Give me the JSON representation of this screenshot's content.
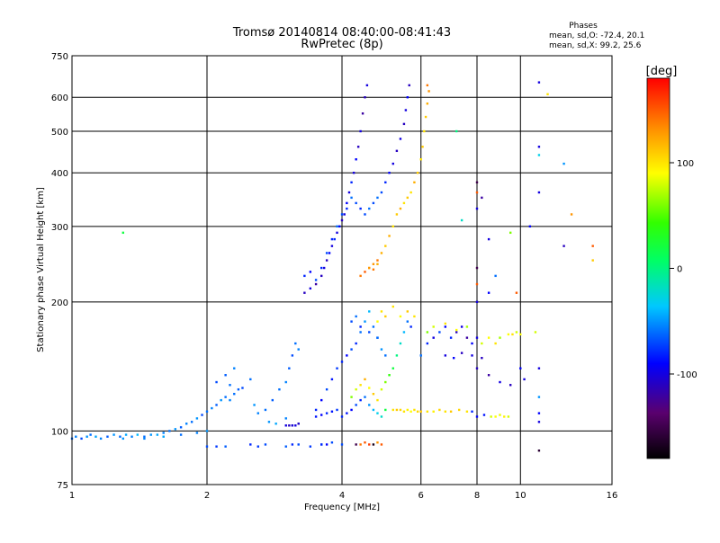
{
  "header": {
    "title_line1": "Tromsø 20140814 08:40:00-08:41:43",
    "title_line2": "RwPretec (8p)"
  },
  "stats": {
    "heading": "Phases",
    "line1": "mean, sd,O: -72.4, 20.1",
    "line2": "mean, sd,X:  99.2, 25.6"
  },
  "chart_data": {
    "type": "scatter",
    "xlabel": "Frequency [MHz]",
    "ylabel": "Stationary phase Virtual Height [km]",
    "x_scale": "log",
    "y_scale": "log",
    "xlim": [
      1,
      16
    ],
    "ylim": [
      75,
      750
    ],
    "x_ticks": [
      1,
      2,
      4,
      6,
      8,
      10,
      16
    ],
    "x_tick_labels": [
      "1",
      "2",
      "4",
      "6",
      "8",
      "10",
      "16"
    ],
    "y_ticks": [
      75,
      100,
      200,
      300,
      400,
      500,
      600,
      750
    ],
    "y_tick_labels": [
      "75",
      "100",
      "200",
      "300",
      "400",
      "500",
      "600",
      "750"
    ],
    "grid_x": [
      2,
      4,
      6,
      8,
      10
    ],
    "grid_y": [
      100,
      200,
      300,
      400,
      500,
      600
    ],
    "colorbar": {
      "label": "[deg]",
      "range": [
        -180,
        180
      ],
      "ticks": [
        100,
        0,
        -100
      ],
      "tick_labels": [
        "100",
        "0",
        "-100"
      ]
    },
    "points": [
      [
        1.0,
        96,
        -60
      ],
      [
        1.02,
        97,
        -55
      ],
      [
        1.05,
        96,
        -70
      ],
      [
        1.08,
        97,
        -50
      ],
      [
        1.1,
        98,
        -60
      ],
      [
        1.13,
        97,
        -45
      ],
      [
        1.16,
        96,
        -55
      ],
      [
        1.2,
        97,
        -65
      ],
      [
        1.24,
        98,
        -50
      ],
      [
        1.28,
        97,
        -60
      ],
      [
        1.32,
        98,
        -45
      ],
      [
        1.36,
        97,
        -55
      ],
      [
        1.4,
        98,
        -40
      ],
      [
        1.45,
        97,
        -60
      ],
      [
        1.5,
        98,
        -50
      ],
      [
        1.55,
        98,
        -45
      ],
      [
        1.6,
        99,
        -55
      ],
      [
        1.65,
        100,
        -60
      ],
      [
        1.7,
        101,
        -50
      ],
      [
        1.75,
        102,
        -65
      ],
      [
        1.8,
        104,
        -55
      ],
      [
        1.85,
        105,
        -60
      ],
      [
        1.9,
        107,
        -50
      ],
      [
        1.95,
        109,
        -70
      ],
      [
        2.0,
        111,
        -60
      ],
      [
        2.05,
        113,
        -55
      ],
      [
        2.1,
        115,
        -65
      ],
      [
        2.15,
        118,
        -50
      ],
      [
        2.2,
        120,
        -60
      ],
      [
        2.25,
        118,
        -55
      ],
      [
        2.3,
        122,
        -60
      ],
      [
        2.35,
        125,
        -65
      ],
      [
        1.3,
        96,
        -50
      ],
      [
        1.45,
        96,
        -55
      ],
      [
        1.6,
        97,
        -45
      ],
      [
        1.75,
        98,
        -60
      ],
      [
        1.9,
        99,
        -55
      ],
      [
        2.0,
        100,
        -50
      ],
      [
        2.1,
        130,
        -70
      ],
      [
        2.2,
        135,
        -65
      ],
      [
        2.25,
        128,
        -60
      ],
      [
        2.3,
        140,
        -55
      ],
      [
        2.4,
        126,
        -70
      ],
      [
        2.5,
        132,
        -60
      ],
      [
        2.55,
        115,
        -50
      ],
      [
        2.6,
        110,
        -55
      ],
      [
        2.7,
        112,
        -60
      ],
      [
        2.8,
        118,
        -65
      ],
      [
        2.9,
        125,
        -60
      ],
      [
        3.0,
        130,
        -55
      ],
      [
        3.05,
        140,
        -65
      ],
      [
        3.1,
        150,
        -70
      ],
      [
        3.15,
        160,
        -60
      ],
      [
        3.2,
        155,
        -55
      ],
      [
        2.75,
        105,
        -50
      ],
      [
        2.85,
        104,
        -45
      ],
      [
        3.0,
        107,
        -55
      ],
      [
        3.1,
        103,
        -60
      ],
      [
        3.2,
        104,
        -50
      ],
      [
        2.0,
        92,
        -70
      ],
      [
        2.1,
        92,
        -75
      ],
      [
        2.2,
        92,
        -65
      ],
      [
        2.5,
        93,
        -80
      ],
      [
        2.6,
        92,
        -75
      ],
      [
        2.7,
        93,
        -70
      ],
      [
        3.0,
        92,
        -65
      ],
      [
        3.1,
        93,
        -80
      ],
      [
        3.2,
        93,
        -70
      ],
      [
        3.4,
        92,
        -75
      ],
      [
        3.6,
        93,
        -60
      ],
      [
        4.0,
        93,
        -70
      ],
      [
        3.0,
        103,
        -100
      ],
      [
        3.05,
        103,
        -110
      ],
      [
        3.1,
        103,
        -105
      ],
      [
        3.15,
        103,
        -100
      ],
      [
        3.2,
        104,
        -110
      ],
      [
        3.5,
        112,
        -80
      ],
      [
        3.6,
        118,
        -90
      ],
      [
        3.7,
        125,
        -70
      ],
      [
        3.8,
        132,
        -85
      ],
      [
        3.9,
        140,
        -75
      ],
      [
        4.0,
        145,
        -80
      ],
      [
        4.1,
        150,
        -90
      ],
      [
        4.2,
        155,
        -70
      ],
      [
        4.3,
        160,
        -80
      ],
      [
        4.4,
        170,
        -60
      ],
      [
        4.5,
        180,
        -50
      ],
      [
        4.6,
        190,
        -40
      ],
      [
        4.7,
        175,
        -60
      ],
      [
        4.8,
        165,
        -70
      ],
      [
        4.9,
        155,
        -50
      ],
      [
        5.0,
        150,
        -60
      ],
      [
        3.5,
        108,
        -85
      ],
      [
        3.6,
        109,
        -90
      ],
      [
        3.7,
        110,
        -80
      ],
      [
        3.8,
        111,
        -85
      ],
      [
        3.9,
        112,
        -75
      ],
      [
        4.0,
        108,
        -80
      ],
      [
        4.1,
        110,
        -85
      ],
      [
        4.2,
        112,
        -90
      ],
      [
        4.3,
        115,
        -70
      ],
      [
        4.4,
        118,
        -80
      ],
      [
        4.5,
        120,
        -60
      ],
      [
        4.6,
        115,
        -50
      ],
      [
        4.7,
        112,
        -40
      ],
      [
        4.8,
        110,
        -30
      ],
      [
        4.9,
        108,
        -20
      ],
      [
        5.0,
        112,
        20
      ],
      [
        4.2,
        120,
        60
      ],
      [
        4.3,
        125,
        80
      ],
      [
        4.4,
        128,
        100
      ],
      [
        4.5,
        132,
        120
      ],
      [
        4.6,
        126,
        90
      ],
      [
        4.7,
        122,
        110
      ],
      [
        4.8,
        118,
        100
      ],
      [
        4.9,
        125,
        80
      ],
      [
        5.0,
        130,
        60
      ],
      [
        5.1,
        135,
        40
      ],
      [
        5.2,
        140,
        20
      ],
      [
        5.3,
        150,
        0
      ],
      [
        5.4,
        160,
        -20
      ],
      [
        5.5,
        170,
        -40
      ],
      [
        5.6,
        180,
        -60
      ],
      [
        5.7,
        175,
        -80
      ],
      [
        5.2,
        112,
        100
      ],
      [
        5.3,
        112,
        110
      ],
      [
        5.4,
        112,
        105
      ],
      [
        5.5,
        111,
        100
      ],
      [
        5.6,
        112,
        95
      ],
      [
        5.7,
        111,
        90
      ],
      [
        5.8,
        112,
        100
      ],
      [
        5.9,
        111,
        105
      ],
      [
        6.0,
        111,
        110
      ],
      [
        6.2,
        111,
        100
      ],
      [
        6.4,
        111,
        95
      ],
      [
        6.6,
        112,
        105
      ],
      [
        6.8,
        111,
        100
      ],
      [
        7.0,
        111,
        110
      ],
      [
        7.3,
        112,
        105
      ],
      [
        7.6,
        111,
        100
      ],
      [
        7.8,
        111,
        -80
      ],
      [
        8.0,
        108,
        -90
      ],
      [
        8.3,
        109,
        -85
      ],
      [
        8.6,
        108,
        80
      ],
      [
        8.8,
        108,
        90
      ],
      [
        9.0,
        109,
        85
      ],
      [
        9.2,
        108,
        95
      ],
      [
        9.4,
        108,
        80
      ],
      [
        6.0,
        150,
        -60
      ],
      [
        6.2,
        160,
        -80
      ],
      [
        6.4,
        165,
        -100
      ],
      [
        6.6,
        170,
        -70
      ],
      [
        6.8,
        175,
        -90
      ],
      [
        7.0,
        165,
        -80
      ],
      [
        7.2,
        170,
        -110
      ],
      [
        7.4,
        175,
        -100
      ],
      [
        7.6,
        165,
        -120
      ],
      [
        7.8,
        160,
        -90
      ],
      [
        8.0,
        165,
        -100
      ],
      [
        8.2,
        160,
        80
      ],
      [
        8.5,
        165,
        90
      ],
      [
        8.8,
        160,
        100
      ],
      [
        9.0,
        165,
        70
      ],
      [
        9.4,
        168,
        90
      ],
      [
        9.6,
        168,
        100
      ],
      [
        9.8,
        170,
        80
      ],
      [
        10.0,
        168,
        90
      ],
      [
        6.8,
        150,
        -100
      ],
      [
        7.1,
        148,
        -90
      ],
      [
        7.4,
        152,
        -110
      ],
      [
        7.8,
        150,
        -100
      ],
      [
        8.2,
        148,
        -110
      ],
      [
        6.2,
        170,
        60
      ],
      [
        6.4,
        175,
        80
      ],
      [
        6.8,
        178,
        100
      ],
      [
        7.2,
        172,
        90
      ],
      [
        7.6,
        175,
        70
      ],
      [
        8.0,
        140,
        -110
      ],
      [
        8.5,
        135,
        -120
      ],
      [
        9.0,
        130,
        -100
      ],
      [
        9.5,
        128,
        -110
      ],
      [
        10.0,
        140,
        -90
      ],
      [
        10.2,
        132,
        -100
      ],
      [
        4.3,
        93,
        -150
      ],
      [
        4.4,
        93,
        140
      ],
      [
        4.5,
        94,
        150
      ],
      [
        4.6,
        93,
        160
      ],
      [
        4.7,
        93,
        -170
      ],
      [
        4.8,
        94,
        130
      ],
      [
        4.9,
        93,
        150
      ],
      [
        3.6,
        93,
        -80
      ],
      [
        3.7,
        93,
        -90
      ],
      [
        3.8,
        94,
        -70
      ],
      [
        3.3,
        210,
        -110
      ],
      [
        3.4,
        215,
        -100
      ],
      [
        3.5,
        220,
        -120
      ],
      [
        3.6,
        230,
        -110
      ],
      [
        3.65,
        240,
        -100
      ],
      [
        3.7,
        250,
        -110
      ],
      [
        3.75,
        260,
        -90
      ],
      [
        3.8,
        270,
        -100
      ],
      [
        3.85,
        280,
        -80
      ],
      [
        3.9,
        290,
        -100
      ],
      [
        3.95,
        300,
        -90
      ],
      [
        4.0,
        310,
        -110
      ],
      [
        4.05,
        320,
        -100
      ],
      [
        4.1,
        340,
        -90
      ],
      [
        4.15,
        360,
        -100
      ],
      [
        4.2,
        380,
        -80
      ],
      [
        4.25,
        400,
        -100
      ],
      [
        4.3,
        430,
        -90
      ],
      [
        4.35,
        460,
        -110
      ],
      [
        4.4,
        500,
        -100
      ],
      [
        4.45,
        550,
        -120
      ],
      [
        4.5,
        600,
        -110
      ],
      [
        4.55,
        640,
        -100
      ],
      [
        3.3,
        230,
        -80
      ],
      [
        3.4,
        235,
        -90
      ],
      [
        3.5,
        225,
        -70
      ],
      [
        3.6,
        240,
        -80
      ],
      [
        3.7,
        260,
        -70
      ],
      [
        3.8,
        280,
        -80
      ],
      [
        3.9,
        300,
        -60
      ],
      [
        4.0,
        320,
        -70
      ],
      [
        4.1,
        330,
        -80
      ],
      [
        4.2,
        350,
        -60
      ],
      [
        4.3,
        340,
        -70
      ],
      [
        4.4,
        330,
        -80
      ],
      [
        4.5,
        320,
        -70
      ],
      [
        4.6,
        330,
        -60
      ],
      [
        4.7,
        340,
        -70
      ],
      [
        4.8,
        350,
        -60
      ],
      [
        4.9,
        360,
        -70
      ],
      [
        5.0,
        380,
        -80
      ],
      [
        5.1,
        400,
        -90
      ],
      [
        5.2,
        420,
        -100
      ],
      [
        5.3,
        450,
        -110
      ],
      [
        5.4,
        480,
        -100
      ],
      [
        5.5,
        520,
        -110
      ],
      [
        5.55,
        560,
        -100
      ],
      [
        5.6,
        600,
        -90
      ],
      [
        5.65,
        640,
        -110
      ],
      [
        4.6,
        240,
        120
      ],
      [
        4.7,
        245,
        130
      ],
      [
        4.8,
        250,
        140
      ],
      [
        4.9,
        260,
        120
      ],
      [
        5.0,
        270,
        110
      ],
      [
        5.1,
        285,
        120
      ],
      [
        5.2,
        300,
        100
      ],
      [
        5.3,
        320,
        110
      ],
      [
        5.4,
        330,
        120
      ],
      [
        5.5,
        340,
        100
      ],
      [
        5.6,
        350,
        110
      ],
      [
        5.7,
        360,
        100
      ],
      [
        5.8,
        380,
        120
      ],
      [
        5.9,
        400,
        110
      ],
      [
        6.0,
        430,
        100
      ],
      [
        6.05,
        460,
        110
      ],
      [
        6.1,
        500,
        100
      ],
      [
        6.15,
        540,
        110
      ],
      [
        6.2,
        580,
        120
      ],
      [
        6.25,
        620,
        130
      ],
      [
        6.2,
        640,
        140
      ],
      [
        4.4,
        230,
        140
      ],
      [
        4.5,
        235,
        150
      ],
      [
        4.6,
        240,
        130
      ],
      [
        4.7,
        238,
        140
      ],
      [
        4.8,
        245,
        120
      ],
      [
        4.8,
        180,
        90
      ],
      [
        4.9,
        190,
        100
      ],
      [
        5.0,
        185,
        110
      ],
      [
        5.2,
        195,
        100
      ],
      [
        5.4,
        185,
        90
      ],
      [
        5.6,
        190,
        110
      ],
      [
        5.8,
        185,
        100
      ],
      [
        4.2,
        180,
        -70
      ],
      [
        4.3,
        185,
        -60
      ],
      [
        4.4,
        175,
        -80
      ],
      [
        4.6,
        170,
        -70
      ],
      [
        4.8,
        165,
        -60
      ],
      [
        1.3,
        290,
        20
      ],
      [
        11.0,
        650,
        -100
      ],
      [
        11.0,
        460,
        -100
      ],
      [
        11.0,
        440,
        -30
      ],
      [
        11.0,
        360,
        -100
      ],
      [
        12.5,
        420,
        -50
      ],
      [
        13.0,
        320,
        130
      ],
      [
        11.5,
        610,
        100
      ],
      [
        12.5,
        270,
        -110
      ],
      [
        14.5,
        270,
        150
      ],
      [
        14.5,
        250,
        110
      ],
      [
        10.5,
        300,
        -90
      ],
      [
        9.5,
        290,
        60
      ],
      [
        8.5,
        280,
        -100
      ],
      [
        8.0,
        380,
        -150
      ],
      [
        8.0,
        360,
        150
      ],
      [
        8.0,
        240,
        -150
      ],
      [
        8.0,
        220,
        150
      ],
      [
        8.0,
        200,
        -100
      ],
      [
        8.2,
        350,
        -120
      ],
      [
        8.8,
        230,
        -60
      ],
      [
        9.8,
        210,
        150
      ],
      [
        8.5,
        210,
        -90
      ],
      [
        11.0,
        140,
        -100
      ],
      [
        11.0,
        120,
        -50
      ],
      [
        11.0,
        110,
        -90
      ],
      [
        11.0,
        105,
        -100
      ],
      [
        11.0,
        90,
        -160
      ],
      [
        7.2,
        500,
        0
      ],
      [
        7.4,
        310,
        -20
      ],
      [
        8.0,
        330,
        -100
      ],
      [
        10.8,
        170,
        80
      ]
    ]
  }
}
